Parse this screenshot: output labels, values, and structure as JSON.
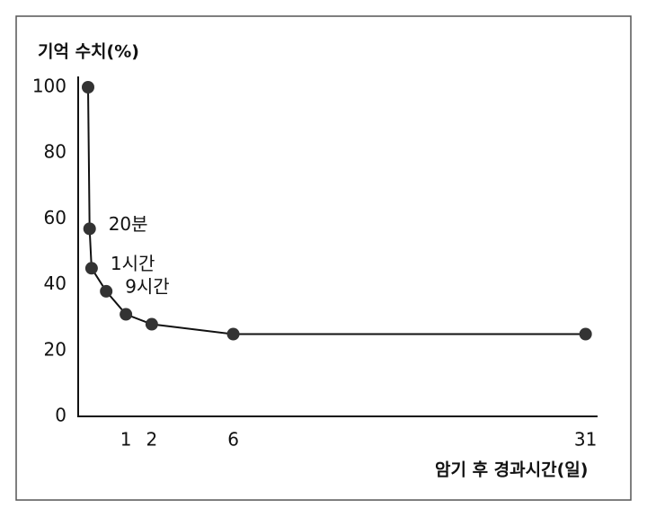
{
  "chart_data": {
    "type": "line",
    "y_label": "기억 수치(%)",
    "x_label": "암기 후 경과시간(일)",
    "x": [
      0,
      0.0139,
      0.0417,
      0.375,
      1,
      2,
      6,
      31
    ],
    "series": [
      {
        "color": "#111111",
        "values": [
          100,
          57,
          45,
          38,
          31,
          28,
          25,
          25
        ]
      }
    ],
    "point_labels": [
      null,
      "20분",
      "1시간",
      "9시간",
      null,
      null,
      null,
      null
    ],
    "xscale": {
      "type": "pow",
      "exponent": 0.75
    },
    "xlim": [
      0,
      32
    ],
    "xticks": [
      1,
      2,
      6,
      31
    ],
    "ylim": [
      0,
      100
    ],
    "yticks": [
      0,
      20,
      40,
      60,
      80,
      100
    ],
    "grid": false
  }
}
